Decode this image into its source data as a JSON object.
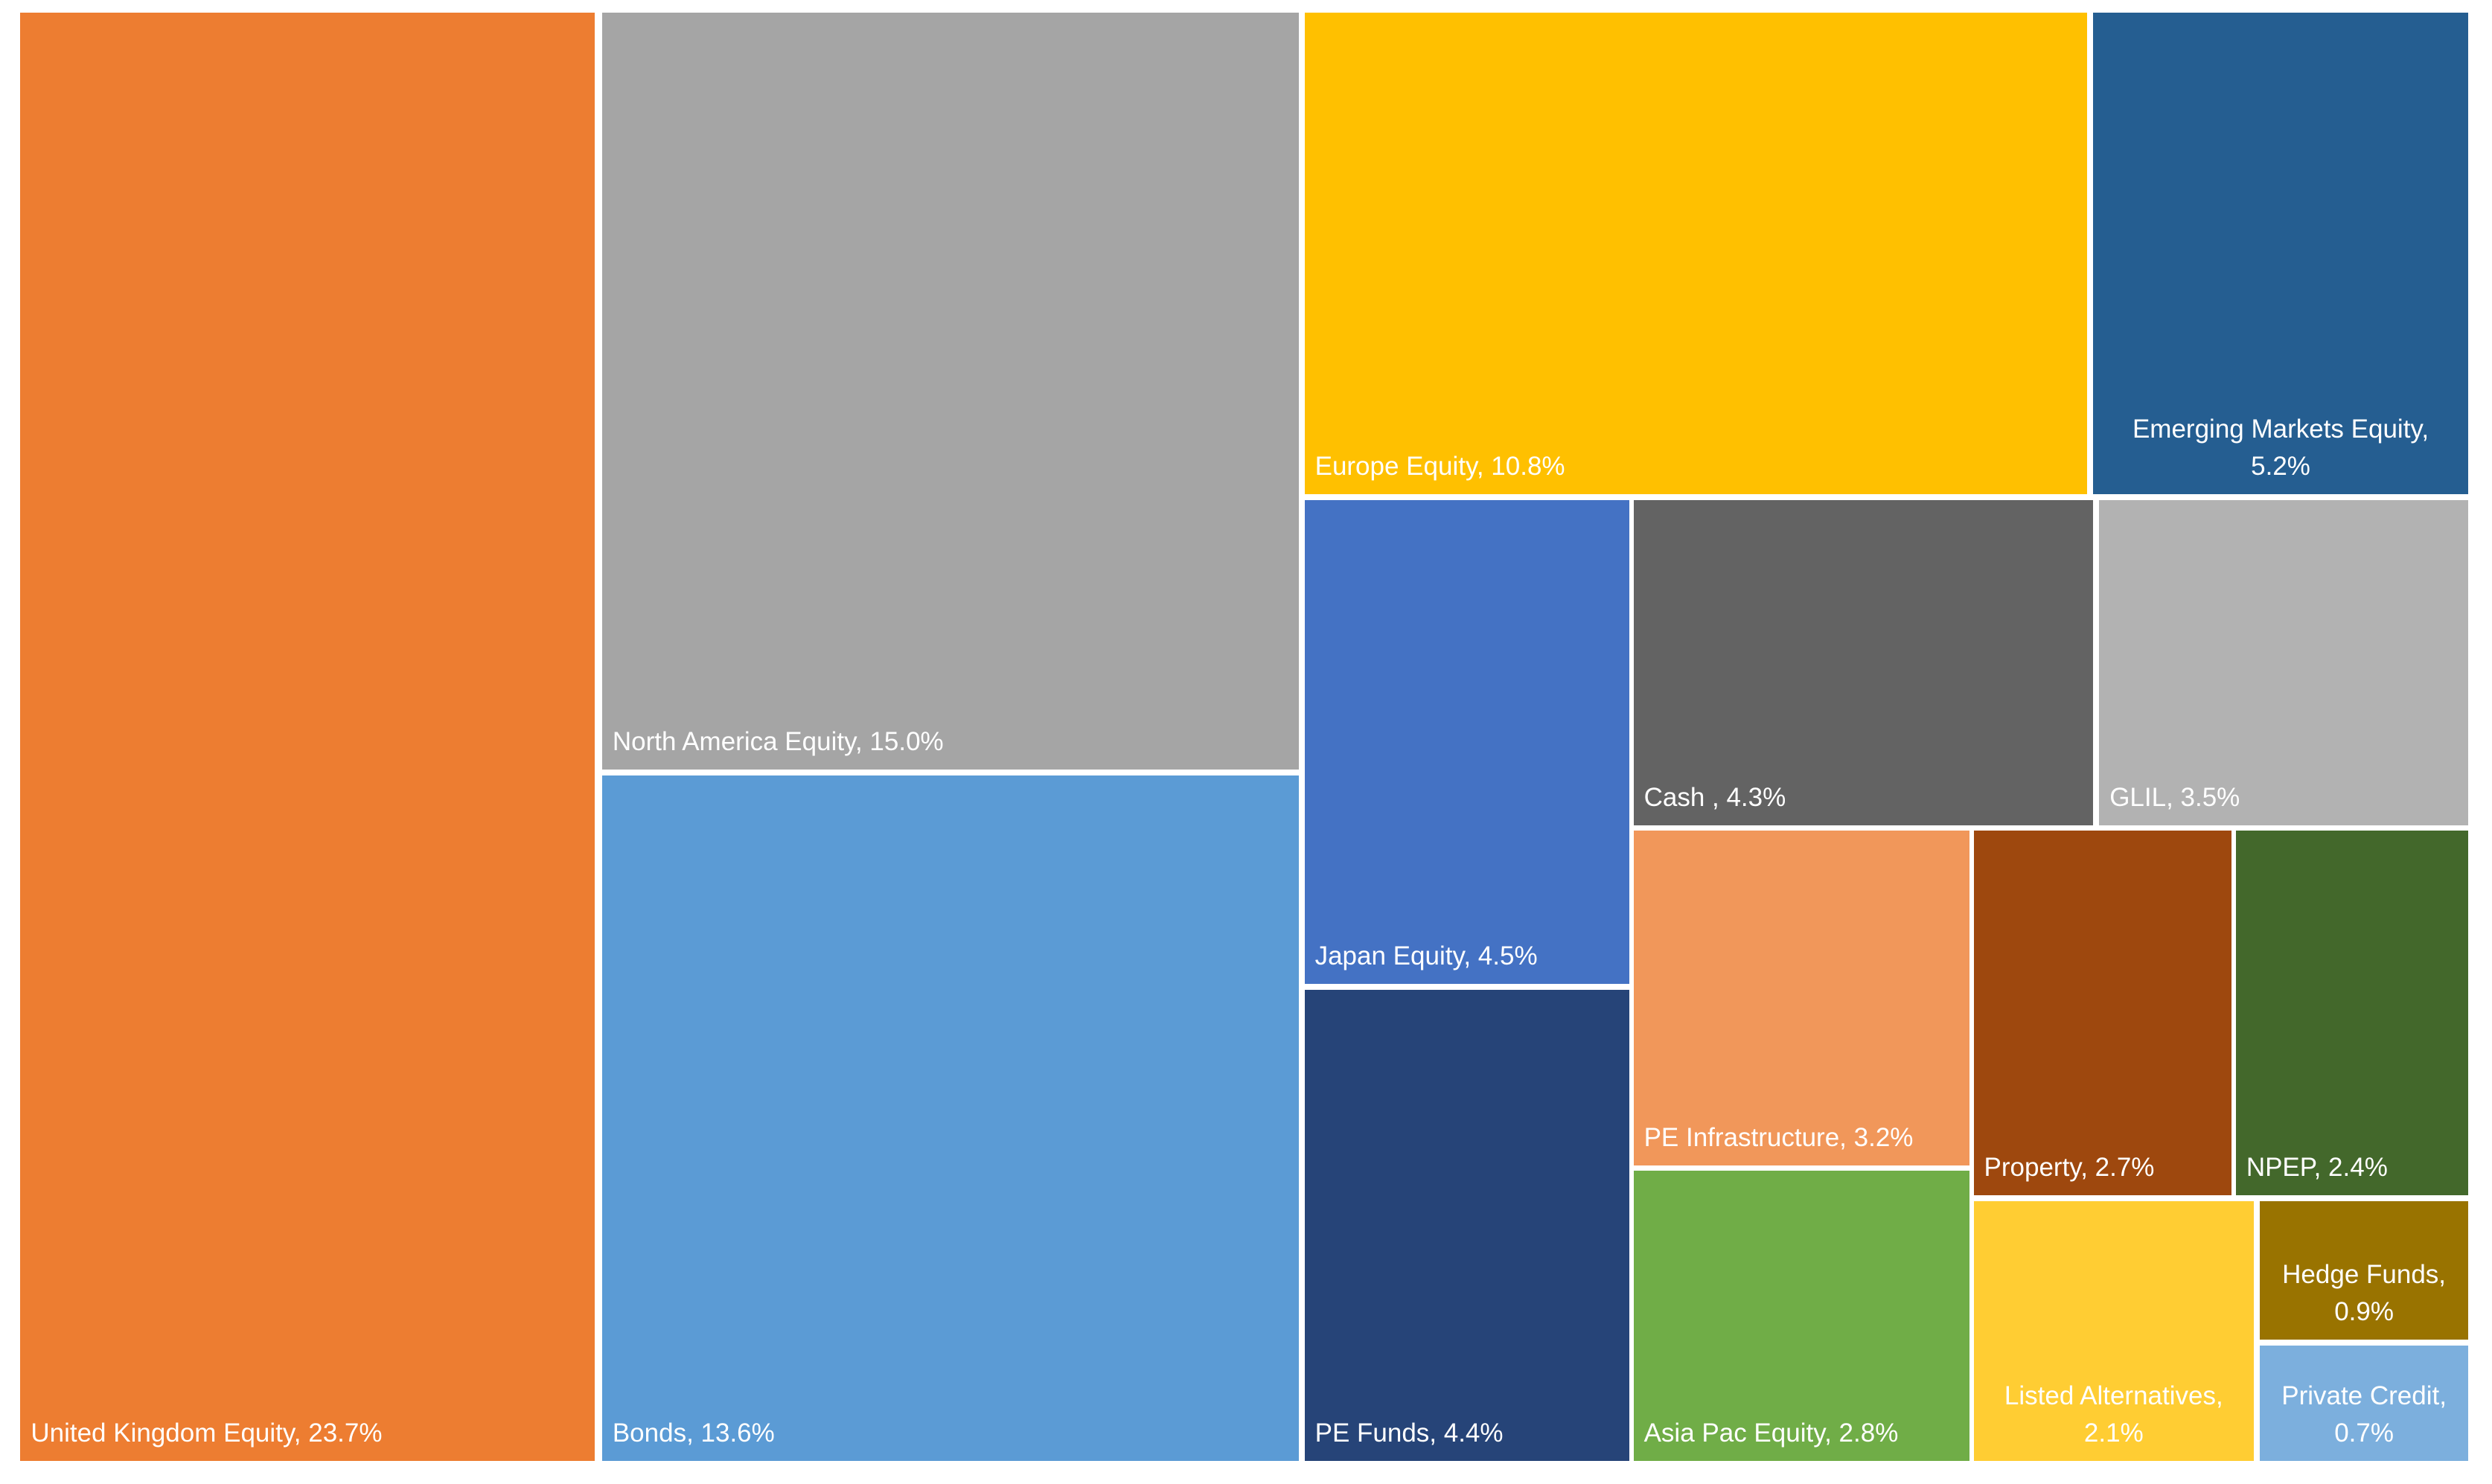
{
  "chart_data": {
    "type": "treemap",
    "title": "",
    "items": [
      {
        "name": "United Kingdom Equity",
        "value": 23.7,
        "label": "United Kingdom Equity, 23.7%",
        "color": "#ED7D31"
      },
      {
        "name": "North America Equity",
        "value": 15.0,
        "label": "North America Equity, 15.0%",
        "color": "#A5A5A5"
      },
      {
        "name": "Bonds",
        "value": 13.6,
        "label": "Bonds, 13.6%",
        "color": "#5B9BD5"
      },
      {
        "name": "Europe Equity",
        "value": 10.8,
        "label": "Europe Equity, 10.8%",
        "color": "#FFC000"
      },
      {
        "name": "Emerging Markets Equity",
        "value": 5.2,
        "label": "Emerging Markets Equity, 5.2%",
        "color": "#255E91"
      },
      {
        "name": "Japan Equity",
        "value": 4.5,
        "label": "Japan Equity, 4.5%",
        "color": "#4472C4"
      },
      {
        "name": "Cash",
        "value": 4.3,
        "label": "Cash , 4.3%",
        "color": "#636363"
      },
      {
        "name": "GLIL",
        "value": 3.5,
        "label": "GLIL, 3.5%",
        "color": "#B2B2B2"
      },
      {
        "name": "PE Funds",
        "value": 4.4,
        "label": "PE Funds, 4.4%",
        "color": "#264478"
      },
      {
        "name": "PE Infrastructure",
        "value": 3.2,
        "label": "PE Infrastructure, 3.2%",
        "color": "#F1975A"
      },
      {
        "name": "Property",
        "value": 2.7,
        "label": "Property, 2.7%",
        "color": "#9E480E"
      },
      {
        "name": "NPEP",
        "value": 2.4,
        "label": "NPEP, 2.4%",
        "color": "#43682B"
      },
      {
        "name": "Asia Pac Equity",
        "value": 2.8,
        "label": "Asia Pac Equity, 2.8%",
        "color": "#70AD47"
      },
      {
        "name": "Listed Alternatives",
        "value": 2.1,
        "label": "Listed Alternatives, 2.1%",
        "color": "#FFCD33"
      },
      {
        "name": "Hedge Funds",
        "value": 0.9,
        "label": "Hedge Funds, 0.9%",
        "color": "#997300"
      },
      {
        "name": "Private Credit",
        "value": 0.7,
        "label": "Private Credit, 0.7%",
        "color": "#7CAFDD"
      }
    ]
  }
}
